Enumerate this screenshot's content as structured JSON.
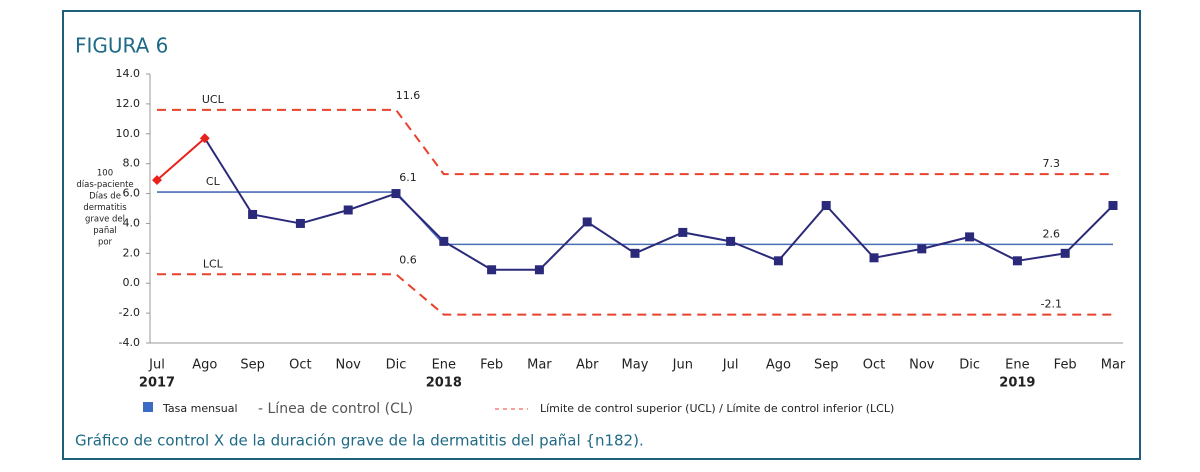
{
  "chart_data": {
    "type": "line",
    "title": "FIGURA 6",
    "y_label": [
      "100",
      "días-paciente",
      "Días de",
      "dermatitis",
      "grave del",
      "pañal",
      "por"
    ],
    "categories": [
      "Jul",
      "Ago",
      "Sep",
      "Oct",
      "Nov",
      "Dic",
      "Ene",
      "Feb",
      "Mar",
      "Abr",
      "May",
      "Jun",
      "Jul",
      "Ago",
      "Sep",
      "Oct",
      "Nov",
      "Dic",
      "Ene",
      "Feb",
      "Mar"
    ],
    "year_labels": [
      "2017",
      null,
      null,
      null,
      null,
      null,
      "2018",
      null,
      null,
      null,
      null,
      null,
      null,
      null,
      null,
      null,
      null,
      null,
      "2019",
      null,
      null
    ],
    "series": [
      {
        "name": "Tasa mensual",
        "color": "#2b2a7a",
        "point_colors": [
          "#e8211c",
          "#e8211c",
          "#2b2a7a",
          "#2b2a7a",
          "#2b2a7a",
          "#2b2a7a",
          "#2b2a7a",
          "#2b2a7a",
          "#2b2a7a",
          "#2b2a7a",
          "#2b2a7a",
          "#2b2a7a",
          "#2b2a7a",
          "#2b2a7a",
          "#2b2a7a",
          "#2b2a7a",
          "#2b2a7a",
          "#2b2a7a",
          "#2b2a7a",
          "#2b2a7a",
          "#2b2a7a"
        ],
        "values": [
          6.9,
          9.7,
          4.6,
          4.0,
          4.9,
          6.0,
          2.8,
          0.9,
          0.9,
          4.1,
          2.0,
          3.4,
          2.8,
          1.5,
          5.2,
          1.7,
          2.3,
          3.1,
          1.5,
          2.0,
          5.2
        ]
      }
    ],
    "control_lines": [
      {
        "label": "UCL",
        "color": "#e8412c",
        "dashed": true,
        "values": [
          11.6,
          11.6,
          11.6,
          11.6,
          11.6,
          11.6,
          7.3,
          7.3,
          7.3,
          7.3,
          7.3,
          7.3,
          7.3,
          7.3,
          7.3,
          7.3,
          7.3,
          7.3,
          7.3,
          7.3,
          7.3
        ]
      },
      {
        "label": "CL",
        "color": "#4a6fb5",
        "dashed": false,
        "values": [
          6.1,
          6.1,
          6.1,
          6.1,
          6.1,
          6.1,
          2.6,
          2.6,
          2.6,
          2.6,
          2.6,
          2.6,
          2.6,
          2.6,
          2.6,
          2.6,
          2.6,
          2.6,
          2.6,
          2.6,
          2.6
        ]
      },
      {
        "label": "LCL",
        "color": "#e8412c",
        "dashed": true,
        "values": [
          0.6,
          0.6,
          0.6,
          0.6,
          0.6,
          0.6,
          -2.1,
          -2.1,
          -2.1,
          -2.1,
          -2.1,
          -2.1,
          -2.1,
          -2.1,
          -2.1,
          -2.1,
          -2.1,
          -2.1,
          -2.1,
          -2.1,
          -2.1
        ]
      }
    ],
    "legend_entries": [
      "- Línea de control (CL)",
      "Límite de control superior (UCL) / Límite de control inferior (LCL)"
    ],
    "ylim": [
      -4,
      14
    ],
    "yticks": [
      {
        "value": -4,
        "label": "-4.0"
      },
      {
        "value": -2,
        "label": "-2.0"
      },
      {
        "value": 0,
        "label": "0.0"
      },
      {
        "value": 2,
        "label": "2.0"
      },
      {
        "value": 4,
        "label": "4.0"
      },
      {
        "value": 6,
        "label": "6.0"
      },
      {
        "value": 8,
        "label": "8.0"
      },
      {
        "value": 10,
        "label": "10.0"
      },
      {
        "value": 12,
        "label": "12.0"
      },
      {
        "value": 14,
        "label": "14.0"
      }
    ],
    "caption": "Gráfico de control X de la duración grave de la dermatitis del pañal {n182)."
  }
}
